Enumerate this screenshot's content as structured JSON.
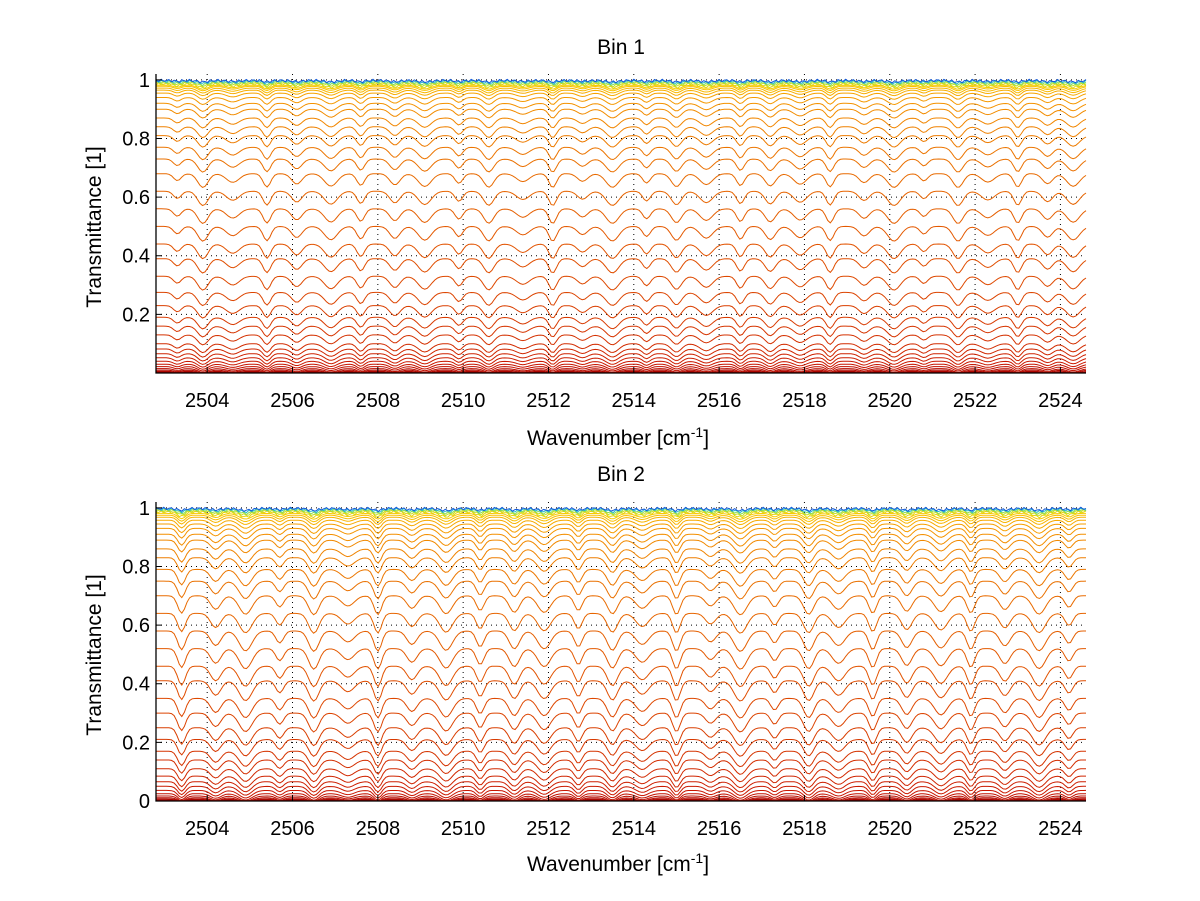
{
  "chart_data": [
    {
      "type": "line",
      "title": "Bin 1",
      "xlabel_main": "Wavenumber [cm",
      "xlabel_sup": "-1",
      "xlabel_end": "]",
      "ylabel": "Transmittance [1]",
      "xlim": [
        2502.8,
        2524.6
      ],
      "ylim": [
        0,
        1.02
      ],
      "xticks": [
        2504,
        2506,
        2508,
        2510,
        2512,
        2514,
        2516,
        2518,
        2520,
        2522,
        2524
      ],
      "yticks": [
        0.2,
        0.4,
        0.6,
        0.8,
        1
      ],
      "ytick_labels": [
        "0.2",
        "0.4",
        "0.6",
        "0.8",
        "1"
      ],
      "grid": true,
      "series_baselines": [
        0.002,
        0.004,
        0.006,
        0.01,
        0.015,
        0.022,
        0.03,
        0.04,
        0.052,
        0.066,
        0.082,
        0.1,
        0.13,
        0.16,
        0.19,
        0.23,
        0.275,
        0.33,
        0.39,
        0.44,
        0.5,
        0.56,
        0.62,
        0.68,
        0.73,
        0.77,
        0.81,
        0.84,
        0.87,
        0.9,
        0.92,
        0.94,
        0.955,
        0.965,
        0.972,
        0.978,
        0.982,
        0.986,
        0.99,
        0.993,
        0.996,
        0.998
      ],
      "line_centers": [
        2503.3,
        2503.9,
        2504.6,
        2505.4,
        2506.1,
        2506.9,
        2507.6,
        2508.4,
        2509.1,
        2509.9,
        2510.6,
        2511.4,
        2512.1,
        2512.8,
        2513.5,
        2514.3,
        2515.0,
        2515.7,
        2516.5,
        2517.2,
        2517.9,
        2518.6,
        2519.4,
        2520.1,
        2520.8,
        2521.6,
        2522.3,
        2523.0,
        2523.7,
        2524.3
      ],
      "line_depth_max": 0.05
    },
    {
      "type": "line",
      "title": "Bin 2",
      "xlabel_main": "Wavenumber [cm",
      "xlabel_sup": "-1",
      "xlabel_end": "]",
      "ylabel": "Transmittance [1]",
      "xlim": [
        2502.8,
        2524.6
      ],
      "ylim": [
        0,
        1.02
      ],
      "xticks": [
        2504,
        2506,
        2508,
        2510,
        2512,
        2514,
        2516,
        2518,
        2520,
        2522,
        2524
      ],
      "yticks": [
        0,
        0.2,
        0.4,
        0.6,
        0.8,
        1
      ],
      "ytick_labels": [
        "0",
        "0.2",
        "0.4",
        "0.6",
        "0.8",
        "1"
      ],
      "grid": true,
      "series_baselines": [
        0.002,
        0.004,
        0.007,
        0.011,
        0.017,
        0.025,
        0.036,
        0.05,
        0.066,
        0.085,
        0.11,
        0.14,
        0.17,
        0.21,
        0.25,
        0.3,
        0.35,
        0.41,
        0.46,
        0.52,
        0.58,
        0.64,
        0.7,
        0.75,
        0.79,
        0.83,
        0.86,
        0.89,
        0.91,
        0.93,
        0.945,
        0.958,
        0.968,
        0.975,
        0.981,
        0.986,
        0.99,
        0.993,
        0.996,
        0.998
      ],
      "line_centers": [
        2503.4,
        2504.2,
        2504.9,
        2505.7,
        2506.5,
        2507.3,
        2508.0,
        2508.8,
        2509.6,
        2510.4,
        2511.2,
        2511.9,
        2512.7,
        2513.5,
        2514.2,
        2515.0,
        2515.8,
        2516.5,
        2517.3,
        2518.1,
        2518.8,
        2519.6,
        2520.4,
        2521.2,
        2521.9,
        2522.7,
        2523.5,
        2524.2
      ],
      "line_depth_max": 0.07
    }
  ]
}
